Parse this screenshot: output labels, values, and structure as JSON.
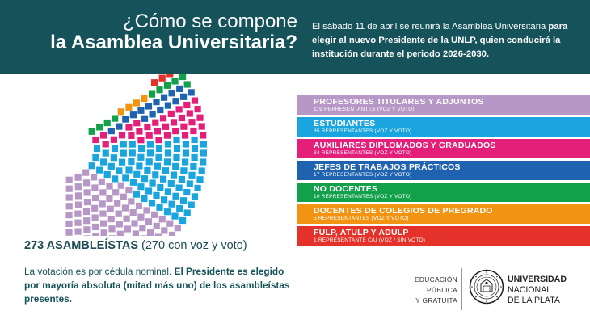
{
  "header": {
    "title_line1": "¿Cómo se compone",
    "title_line2": "la Asamblea Universitaria?",
    "text_part1": "El sábado 11 de abril se reunirá la Asamblea Universitaria",
    "text_part2": "para elegir al nuevo Presidente de la UNLP, quien conducirá la institución durante el periodo 2026-2030."
  },
  "chart_data": {
    "type": "parliament",
    "total_seats": 273,
    "groups": [
      {
        "name": "PROFESORES TITULARES Y ADJUNTOS",
        "representatives": "119 REPRESENTANTES (VOZ Y VOTO)",
        "seats": 119,
        "color": "#b697c5"
      },
      {
        "name": "ESTUDIANTES",
        "representatives": "85 REPRESENTANTES (VOZ Y VOTO)",
        "seats": 85,
        "color": "#1aa5de"
      },
      {
        "name": "AUXILIARES DIPLOMADOS Y GRADUADOS",
        "representatives": "34 REPRESENTANTES (VOZ Y VOTO)",
        "seats": 34,
        "color": "#e31f7a"
      },
      {
        "name": "JEFES DE TRABAJOS PRÁCTICOS",
        "representatives": "17 REPRESENTANTES (VOZ Y VOTO)",
        "seats": 17,
        "color": "#1f63b0"
      },
      {
        "name": "NO DOCENTES",
        "representatives": "10 REPRESENTANTES (VOZ Y VOTO)",
        "seats": 10,
        "color": "#13a04a"
      },
      {
        "name": "DOCENTES DE COLEGIOS DE PREGRADO",
        "representatives": "5 REPRESENTANTES (VOZ Y VOTO)",
        "seats": 5,
        "color": "#f29411"
      },
      {
        "name": "FULP, ATULP Y ADULP",
        "representatives": "1 REPRESENTANTE C/U (VOZ / SIN VOTO)",
        "seats": 3,
        "color": "#e4322b"
      }
    ]
  },
  "summary": {
    "total_bold": "273 ASAMBLEÍSTAS",
    "total_rest": " (270 con voz y voto)",
    "note_regular": "La votación es por cédula nominal. ",
    "note_bold": "El Presidente es elegido por mayoría absoluta (mitad más uno) de los asambleístas presentes."
  },
  "footer": {
    "motto_line1": "EDUCACIÓN",
    "motto_line2": "PÚBLICA",
    "motto_line3": "Y GRATUITA",
    "uni_line1": "UNIVERSIDAD",
    "uni_line2": "NACIONAL",
    "uni_line3": "DE LA PLATA"
  },
  "colors": {
    "header_bg": "#15525a",
    "text_dark": "#1d4b53"
  }
}
